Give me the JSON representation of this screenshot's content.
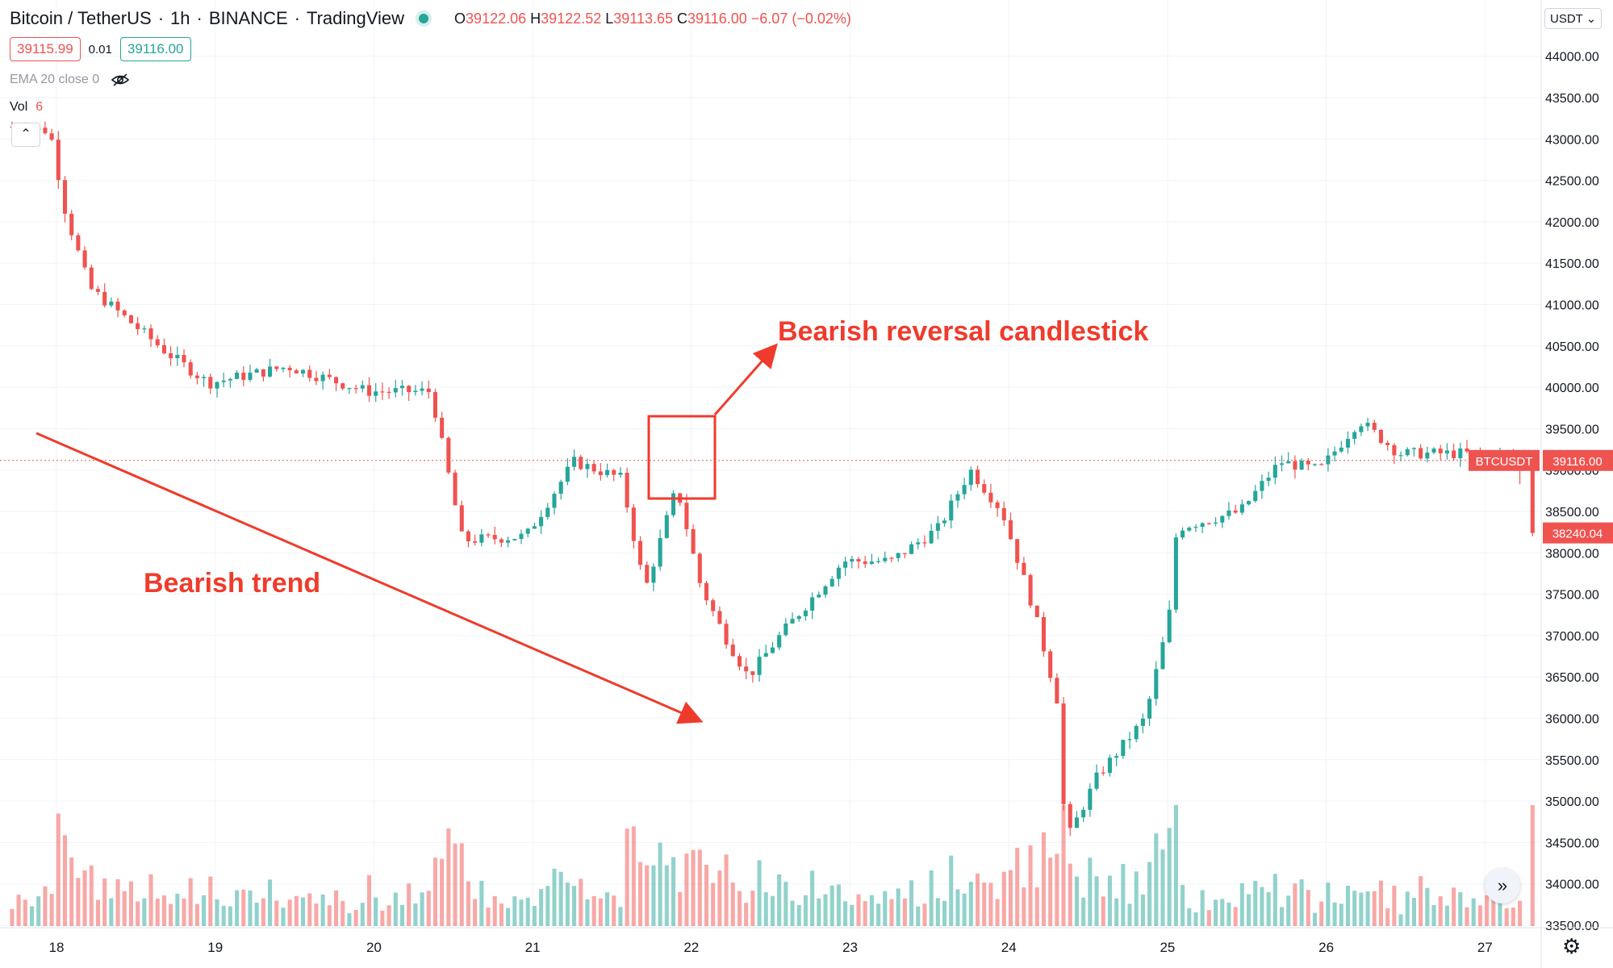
{
  "header": {
    "symbol": "Bitcoin / TetherUS",
    "interval": "1h",
    "exchange": "BINANCE",
    "source": "TradingView",
    "o_label": "O",
    "o": "39122.06",
    "h_label": "H",
    "h": "39122.52",
    "l_label": "L",
    "l": "39113.65",
    "c_label": "C",
    "c": "39116.00",
    "change": "−6.07 (−0.02%)"
  },
  "bid": "39115.99",
  "spread": "0.01",
  "ask": "39116.00",
  "ema_label": "EMA 20 close 0",
  "vol_label": "Vol",
  "vol_value": "6",
  "currency": "USDT",
  "last_price_label": "39116.00",
  "ticker_label": "BTCUSDT",
  "low_price_label": "38240.04",
  "icons": [
    "eye-off-icon",
    "chevron-up-icon",
    "chevron-down-icon",
    "double-chevron-right-icon",
    "gear-icon"
  ],
  "colors": {
    "up": "#26a69a",
    "down": "#ef5350",
    "annotation": "#ef3b2c"
  },
  "annotations": {
    "trend": "Bearish trend",
    "reversal": "Bearish reversal candlestick"
  },
  "chart_data": {
    "type": "candlestick",
    "x_ticks": [
      "18",
      "19",
      "20",
      "21",
      "22",
      "23",
      "24",
      "25",
      "26",
      "27"
    ],
    "y_ticks": [
      "33500.00",
      "34000.00",
      "34500.00",
      "35000.00",
      "35500.00",
      "36000.00",
      "36500.00",
      "37000.00",
      "37500.00",
      "38000.00",
      "38500.00",
      "39000.00",
      "39500.00",
      "40000.00",
      "40500.00",
      "41000.00",
      "41500.00",
      "42000.00",
      "42500.00",
      "43000.00",
      "43500.00",
      "44000.00"
    ],
    "ylim": [
      33400,
      44300
    ],
    "last_price": 39116.0,
    "day_waypoints": [
      {
        "day": 17.75,
        "price": 43150
      },
      {
        "day": 18.0,
        "price": 43100
      },
      {
        "day": 18.1,
        "price": 42100
      },
      {
        "day": 18.25,
        "price": 41200
      },
      {
        "day": 18.5,
        "price": 40800
      },
      {
        "day": 18.75,
        "price": 40400
      },
      {
        "day": 19.0,
        "price": 40050
      },
      {
        "day": 19.5,
        "price": 40250
      },
      {
        "day": 20.0,
        "price": 39950
      },
      {
        "day": 20.4,
        "price": 39950
      },
      {
        "day": 20.6,
        "price": 38150
      },
      {
        "day": 21.0,
        "price": 38200
      },
      {
        "day": 21.3,
        "price": 39100
      },
      {
        "day": 21.6,
        "price": 38900
      },
      {
        "day": 21.75,
        "price": 37550
      },
      {
        "day": 21.95,
        "price": 38800
      },
      {
        "day": 22.1,
        "price": 37600
      },
      {
        "day": 22.25,
        "price": 37000
      },
      {
        "day": 22.4,
        "price": 36500
      },
      {
        "day": 22.6,
        "price": 37000
      },
      {
        "day": 23.0,
        "price": 37900
      },
      {
        "day": 23.3,
        "price": 37900
      },
      {
        "day": 23.6,
        "price": 38300
      },
      {
        "day": 23.8,
        "price": 39000
      },
      {
        "day": 24.0,
        "price": 38500
      },
      {
        "day": 24.2,
        "price": 37300
      },
      {
        "day": 24.35,
        "price": 36200
      },
      {
        "day": 24.4,
        "price": 34500
      },
      {
        "day": 24.6,
        "price": 35300
      },
      {
        "day": 24.9,
        "price": 36000
      },
      {
        "day": 25.05,
        "price": 37200
      },
      {
        "day": 25.1,
        "price": 38300
      },
      {
        "day": 25.5,
        "price": 38500
      },
      {
        "day": 25.75,
        "price": 39100
      },
      {
        "day": 26.0,
        "price": 39000
      },
      {
        "day": 26.25,
        "price": 39600
      },
      {
        "day": 26.5,
        "price": 39200
      },
      {
        "day": 27.0,
        "price": 39200
      },
      {
        "day": 27.25,
        "price": 39116
      },
      {
        "day": 27.3,
        "price": 38240
      }
    ]
  }
}
